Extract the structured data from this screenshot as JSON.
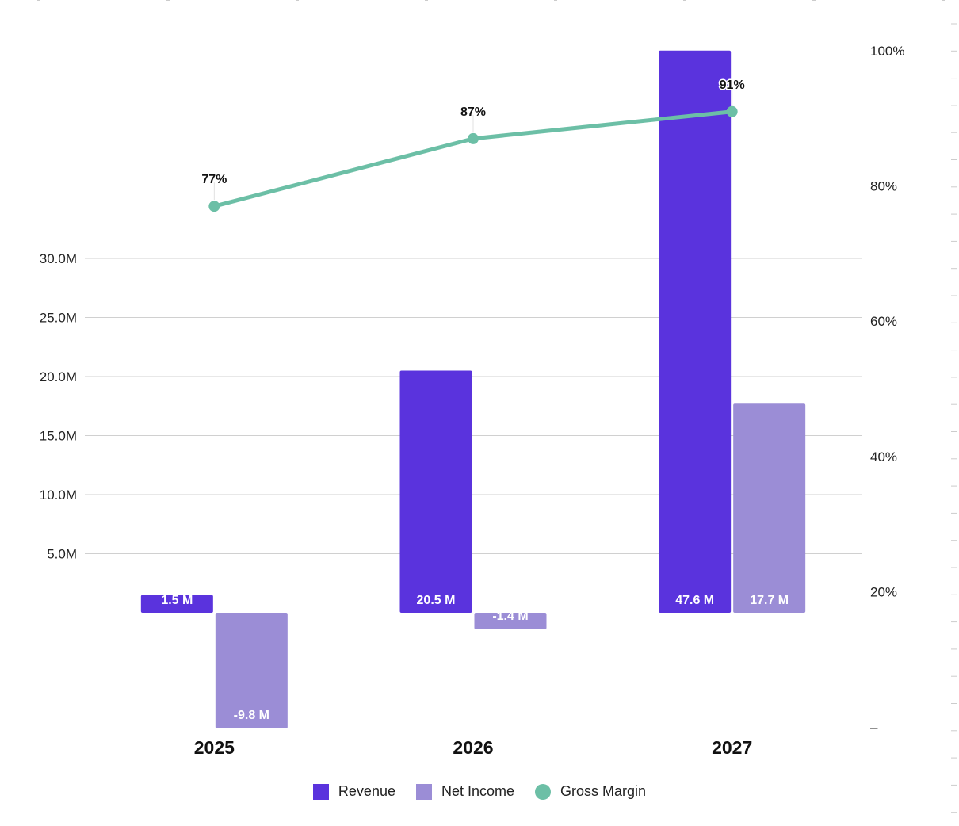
{
  "chart_data": {
    "type": "bar",
    "categories": [
      "2025",
      "2026",
      "2027"
    ],
    "series": [
      {
        "name": "Revenue",
        "kind": "bar",
        "color": "#5a33dd",
        "values": [
          1.5,
          20.5,
          47.6
        ],
        "labels": [
          "1.5 M",
          "20.5 M",
          "47.6 M"
        ]
      },
      {
        "name": "Net Income",
        "kind": "bar",
        "color": "#9b8dd6",
        "values": [
          -9.8,
          -1.4,
          17.7
        ],
        "labels": [
          "-9.8 M",
          "-1.4 M",
          "17.7 M"
        ]
      },
      {
        "name": "Gross Margin",
        "kind": "line",
        "axis": "right",
        "color": "#6cbfa6",
        "values": [
          77,
          87,
          91
        ],
        "labels": [
          "77%",
          "87%",
          "91%"
        ]
      }
    ],
    "y_left": {
      "ticks": [
        5,
        10,
        15,
        20,
        25,
        30
      ],
      "tick_labels": [
        "5.0M",
        "10.0M",
        "15.0M",
        "20.0M",
        "25.0M",
        "30.0M"
      ]
    },
    "y_right": {
      "ylim": [
        0,
        100
      ],
      "ticks": [
        0,
        20,
        40,
        60,
        80,
        100
      ],
      "tick_labels": [
        "–",
        "20%",
        "40%",
        "60%",
        "80%",
        "100%"
      ]
    },
    "grid": true,
    "legend_position": "bottom-center"
  }
}
